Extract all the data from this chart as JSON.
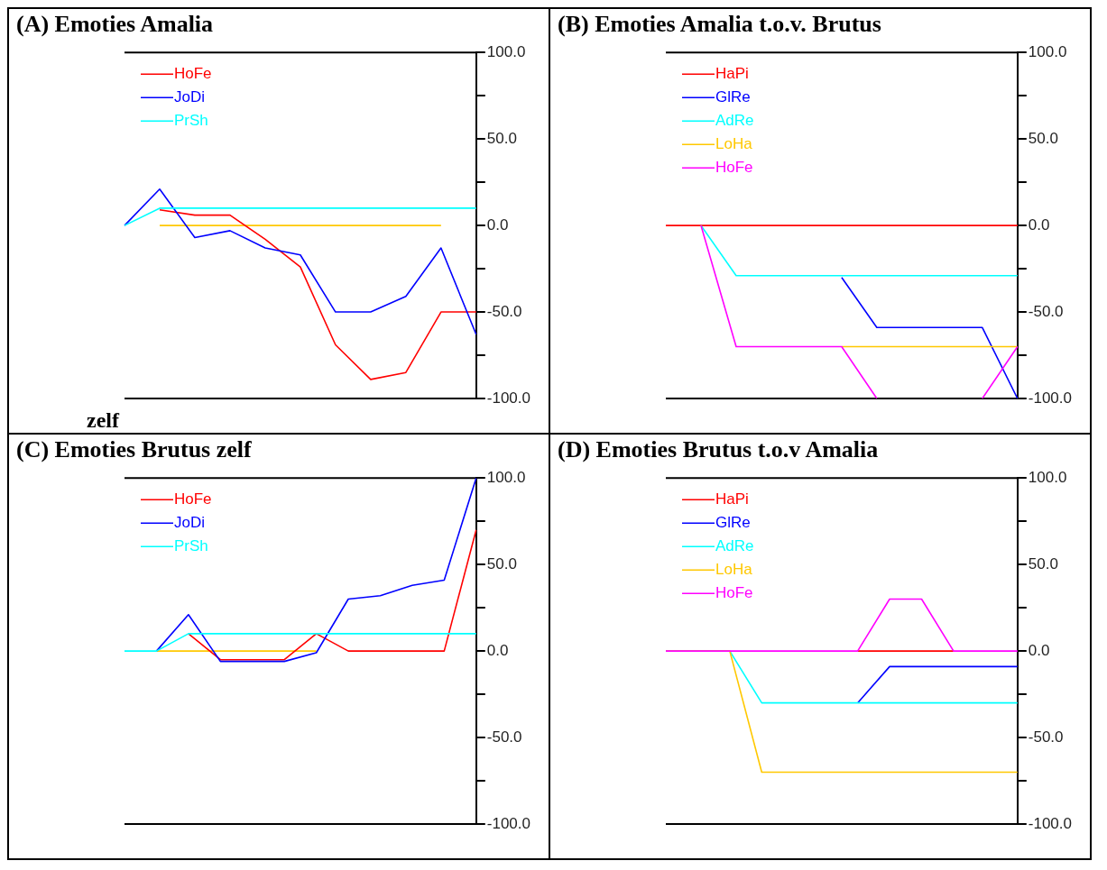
{
  "chart_data": [
    {
      "type": "line",
      "title": "(A) Emoties Amalia",
      "annotations": [
        "zelf"
      ],
      "legend": "top left",
      "marker": "none",
      "tick_labels": "y",
      "ylim": [
        -100,
        100
      ],
      "categories": [
        null,
        null,
        null,
        null,
        null,
        null,
        null,
        null,
        null,
        null,
        null
      ],
      "yticks": [
        {
          "value": -100,
          "label": "-100.0"
        },
        {
          "value": -75,
          "label": null
        },
        {
          "value": -50,
          "label": "-50.0"
        },
        {
          "value": -25,
          "label": null
        },
        {
          "value": 0,
          "label": "0.0"
        },
        {
          "value": 25,
          "label": null
        },
        {
          "value": 50,
          "label": "50.0"
        },
        {
          "value": 75,
          "label": null
        },
        {
          "value": 100,
          "label": "100.0"
        }
      ],
      "series": [
        {
          "color": "#ffc800",
          "values": [
            null,
            0,
            0,
            0,
            0,
            0,
            0,
            0,
            0,
            0,
            null
          ]
        },
        {
          "name": "HoFe",
          "color": "#ff0000",
          "values": [
            null,
            9,
            6,
            6,
            -8,
            -24,
            -69,
            -89,
            -85,
            -50,
            -50
          ]
        },
        {
          "name": "JoDi",
          "color": "#0000ff",
          "values": [
            0,
            21,
            -7,
            -3,
            -13,
            -17,
            -50,
            -50,
            -41,
            -13,
            -63
          ]
        },
        {
          "name": "PrSh",
          "color": "#00ffff",
          "values": [
            0,
            10,
            10,
            10,
            10,
            10,
            10,
            10,
            10,
            10,
            10
          ]
        }
      ]
    },
    {
      "type": "line",
      "title": "(B) Emoties Amalia t.o.v. Brutus",
      "legend": "top left",
      "marker": "none",
      "tick_labels": "y",
      "ylim": [
        -100,
        100
      ],
      "categories": [
        null,
        null,
        null,
        null,
        null,
        null,
        null,
        null,
        null,
        null,
        null
      ],
      "yticks": [
        {
          "value": -100,
          "label": "-100.0"
        },
        {
          "value": -75,
          "label": null
        },
        {
          "value": -50,
          "label": "-50.0"
        },
        {
          "value": -25,
          "label": null
        },
        {
          "value": 0,
          "label": "0.0"
        },
        {
          "value": 25,
          "label": null
        },
        {
          "value": 50,
          "label": "50.0"
        },
        {
          "value": 75,
          "label": null
        },
        {
          "value": 100,
          "label": "100.0"
        }
      ],
      "series": [
        {
          "name": "HaPi",
          "color": "#ff0000",
          "values": [
            0,
            0,
            0,
            0,
            0,
            0,
            0,
            0,
            0,
            0,
            0
          ]
        },
        {
          "name": "GlRe",
          "color": "#0000ff",
          "values": [
            null,
            null,
            null,
            null,
            null,
            -30,
            -59,
            -59,
            -59,
            -59,
            -100
          ]
        },
        {
          "name": "AdRe",
          "color": "#00ffff",
          "values": [
            null,
            0,
            -29,
            -29,
            -29,
            -29,
            -29,
            -29,
            -29,
            -29,
            -29
          ]
        },
        {
          "name": "LoHa",
          "color": "#ffc800",
          "values": [
            null,
            null,
            null,
            null,
            null,
            -70,
            -70,
            -70,
            -70,
            -70,
            -70
          ]
        },
        {
          "name": "HoFe",
          "color": "#ff00ff",
          "values": [
            null,
            0,
            -70,
            -70,
            -70,
            -70,
            -100,
            null,
            null,
            -100,
            -70
          ]
        }
      ]
    },
    {
      "type": "line",
      "title": "(C) Emoties Brutus zelf",
      "legend": "top left",
      "marker": "none",
      "tick_labels": "y",
      "ylim": [
        -100,
        100
      ],
      "categories": [
        null,
        null,
        null,
        null,
        null,
        null,
        null,
        null,
        null,
        null,
        null,
        null
      ],
      "yticks": [
        {
          "value": -100,
          "label": "-100.0"
        },
        {
          "value": -75,
          "label": null
        },
        {
          "value": -50,
          "label": "-50.0"
        },
        {
          "value": -25,
          "label": null
        },
        {
          "value": 0,
          "label": "0.0"
        },
        {
          "value": 25,
          "label": null
        },
        {
          "value": 50,
          "label": "50.0"
        },
        {
          "value": 75,
          "label": null
        },
        {
          "value": 100,
          "label": "100.0"
        }
      ],
      "series": [
        {
          "color": "#ffc800",
          "values": [
            null,
            0,
            0,
            0,
            0,
            0,
            0,
            null,
            null,
            null,
            null,
            null
          ]
        },
        {
          "name": "HoFe",
          "color": "#ff0000",
          "values": [
            null,
            null,
            10,
            -5,
            -5,
            -5,
            10,
            0,
            0,
            0,
            0,
            70
          ]
        },
        {
          "name": "JoDi",
          "color": "#0000ff",
          "values": [
            null,
            0,
            21,
            -6,
            -6,
            -6,
            -1,
            30,
            32,
            38,
            41,
            100
          ]
        },
        {
          "name": "PrSh",
          "color": "#00ffff",
          "values": [
            0,
            0,
            10,
            10,
            10,
            10,
            10,
            10,
            10,
            10,
            10,
            10
          ]
        }
      ]
    },
    {
      "type": "line",
      "title": "(D) Emoties Brutus t.o.v Amalia",
      "legend": "top left",
      "marker": "none",
      "tick_labels": "y",
      "ylim": [
        -100,
        100
      ],
      "categories": [
        null,
        null,
        null,
        null,
        null,
        null,
        null,
        null,
        null,
        null,
        null,
        null
      ],
      "yticks": [
        {
          "value": -100,
          "label": "-100.0"
        },
        {
          "value": -75,
          "label": null
        },
        {
          "value": -50,
          "label": "-50.0"
        },
        {
          "value": -25,
          "label": null
        },
        {
          "value": 0,
          "label": "0.0"
        },
        {
          "value": 25,
          "label": null
        },
        {
          "value": 50,
          "label": "50.0"
        },
        {
          "value": 75,
          "label": null
        },
        {
          "value": 100,
          "label": "100.0"
        }
      ],
      "series": [
        {
          "name": "HaPi",
          "color": "#ff0000",
          "values": [
            null,
            null,
            null,
            null,
            null,
            null,
            0,
            0,
            0,
            0,
            null,
            null
          ]
        },
        {
          "name": "GlRe",
          "color": "#0000ff",
          "values": [
            null,
            null,
            null,
            null,
            null,
            null,
            -30,
            -9,
            -9,
            -9,
            -9,
            -9
          ]
        },
        {
          "name": "AdRe",
          "color": "#00ffff",
          "values": [
            0,
            0,
            0,
            -30,
            -30,
            -30,
            -30,
            -30,
            -30,
            -30,
            -30,
            -30
          ]
        },
        {
          "name": "LoHa",
          "color": "#ffc800",
          "values": [
            0,
            0,
            0,
            -70,
            -70,
            -70,
            -70,
            -70,
            -70,
            -70,
            -70,
            -70
          ]
        },
        {
          "name": "HoFe",
          "color": "#ff00ff",
          "values": [
            0,
            0,
            0,
            0,
            0,
            0,
            0,
            30,
            30,
            0,
            0,
            0
          ]
        }
      ]
    }
  ]
}
